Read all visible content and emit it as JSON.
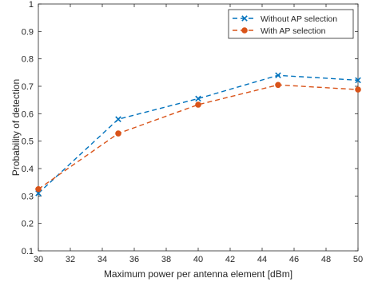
{
  "chart_data": {
    "type": "line",
    "xlabel": "Maximum power per antenna element [dBm]",
    "ylabel": "Probability of detection",
    "xlim": [
      30,
      50
    ],
    "ylim": [
      0.1,
      1
    ],
    "xticks": [
      30,
      32,
      34,
      36,
      38,
      40,
      42,
      44,
      46,
      48,
      50
    ],
    "yticks": [
      0.1,
      0.2,
      0.3,
      0.4,
      0.5,
      0.6,
      0.7,
      0.8,
      0.9,
      1
    ],
    "grid": false,
    "legend_position": "top-right",
    "series": [
      {
        "name": "Without AP selection",
        "color": "#0072BD",
        "marker": "x",
        "line_style": "dashed",
        "x": [
          30,
          35,
          40,
          45,
          50
        ],
        "y": [
          0.31,
          0.58,
          0.655,
          0.74,
          0.722
        ]
      },
      {
        "name": "With AP selection",
        "color": "#D95319",
        "marker": "circle",
        "line_style": "dashed",
        "x": [
          30,
          35,
          40,
          45,
          50
        ],
        "y": [
          0.325,
          0.528,
          0.633,
          0.705,
          0.688
        ]
      }
    ]
  }
}
